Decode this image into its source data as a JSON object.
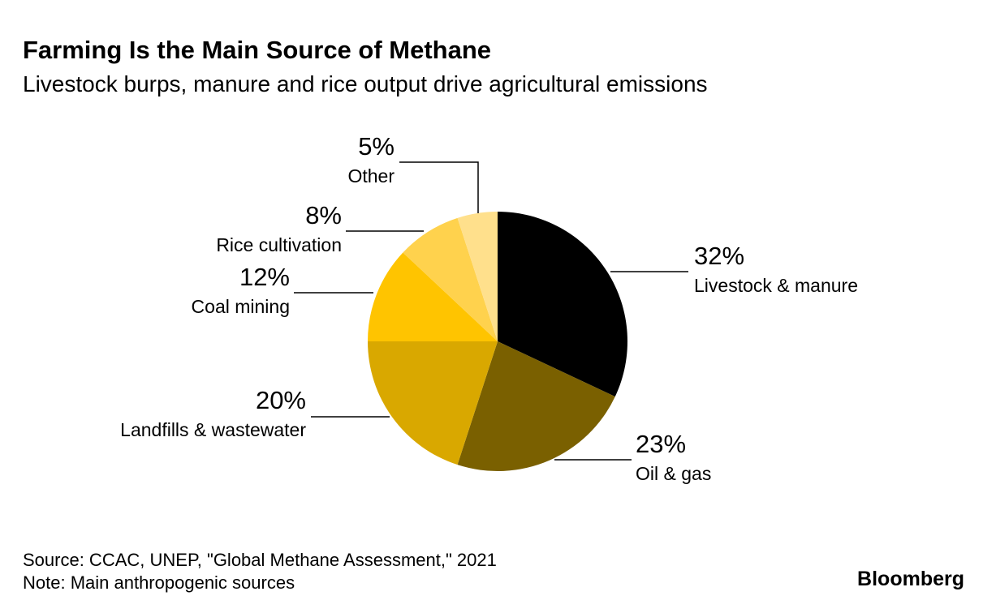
{
  "chart_data": {
    "type": "pie",
    "title": "Farming Is the Main Source of Methane",
    "subtitle": "Livestock burps, manure and rice output drive agricultural emissions",
    "categories": [
      "Livestock & manure",
      "Oil & gas",
      "Landfills & wastewater",
      "Coal mining",
      "Rice cultivation",
      "Other"
    ],
    "values": [
      32,
      23,
      20,
      12,
      8,
      5
    ],
    "value_labels": [
      "32%",
      "23%",
      "20%",
      "12%",
      "8%",
      "5%"
    ],
    "colors": [
      "#000000",
      "#7a6000",
      "#d9a800",
      "#ffc400",
      "#ffd24d",
      "#ffe08c"
    ],
    "source": "Source: CCAC, UNEP, \"Global Methane Assessment,\" 2021",
    "note": "Note: Main anthropogenic sources",
    "logo": "Bloomberg"
  }
}
